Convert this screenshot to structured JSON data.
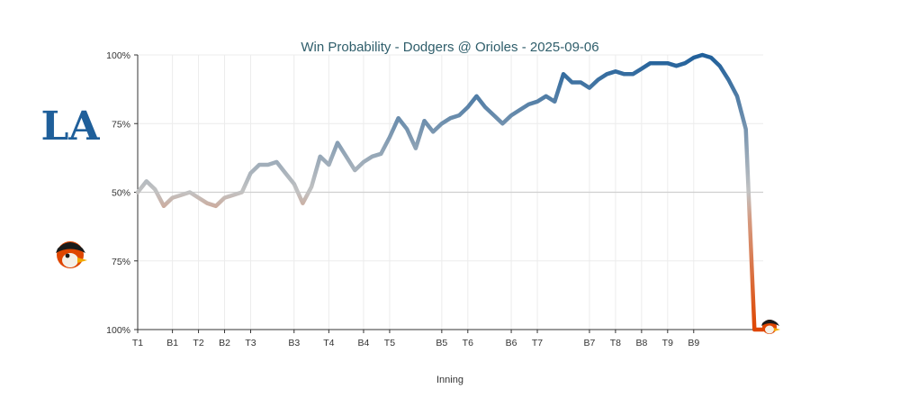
{
  "chart_data": {
    "type": "line",
    "title": "Win Probability - Dodgers @ Orioles - 2025-09-06",
    "xlabel": "Inning",
    "ylabel": "",
    "y_tick_labels": [
      "100%",
      "75%",
      "50%",
      "75%",
      "100%"
    ],
    "ylim": [
      -100,
      100
    ],
    "grid": true,
    "x_ticks": [
      {
        "label": "T1",
        "x": 0
      },
      {
        "label": "B1",
        "x": 4
      },
      {
        "label": "T2",
        "x": 7
      },
      {
        "label": "B2",
        "x": 10
      },
      {
        "label": "T3",
        "x": 13
      },
      {
        "label": "B3",
        "x": 18
      },
      {
        "label": "T4",
        "x": 22
      },
      {
        "label": "B4",
        "x": 26
      },
      {
        "label": "T5",
        "x": 29
      },
      {
        "label": "B5",
        "x": 35
      },
      {
        "label": "T6",
        "x": 38
      },
      {
        "label": "B6",
        "x": 43
      },
      {
        "label": "T7",
        "x": 46
      },
      {
        "label": "B7",
        "x": 52
      },
      {
        "label": "T8",
        "x": 55
      },
      {
        "label": "B8",
        "x": 58
      },
      {
        "label": "T9",
        "x": 61
      },
      {
        "label": "B9",
        "x": 64
      }
    ],
    "x_max": 72,
    "series": [
      {
        "name": "",
        "x": [
          0,
          1,
          2,
          3,
          4,
          5,
          6,
          7,
          8,
          9,
          10,
          11,
          12,
          13,
          14,
          15,
          16,
          17,
          18,
          19,
          20,
          21,
          22,
          23,
          24,
          25,
          26,
          27,
          28,
          29,
          30,
          31,
          32,
          33,
          34,
          35,
          36,
          37,
          38,
          39,
          40,
          41,
          42,
          43,
          44,
          45,
          46,
          47,
          48,
          49,
          50,
          51,
          52,
          53,
          54,
          55,
          56,
          57,
          58,
          59,
          60,
          61,
          62,
          63,
          64,
          65,
          66,
          67,
          68,
          69,
          70,
          71,
          72
        ],
        "values": [
          0,
          8,
          2,
          -10,
          -4,
          -2,
          0,
          -4,
          -8,
          -10,
          -4,
          -2,
          0,
          14,
          20,
          20,
          22,
          14,
          6,
          -8,
          4,
          26,
          20,
          36,
          26,
          16,
          22,
          26,
          28,
          40,
          54,
          46,
          32,
          52,
          44,
          50,
          54,
          56,
          62,
          70,
          62,
          56,
          50,
          56,
          60,
          64,
          66,
          70,
          66,
          86,
          80,
          80,
          76,
          82,
          86,
          88,
          86,
          86,
          90,
          94,
          94,
          94,
          92,
          94,
          98,
          100,
          98,
          92,
          82,
          70,
          46,
          -100,
          -100
        ]
      }
    ],
    "team_top": "LA",
    "team_bottom": "Orioles",
    "colors": {
      "dodgers": "#1f5f9a",
      "orioles": "#df4601",
      "neutral": "#bdbdbd",
      "grid": "#ececec",
      "midline": "#cfcfcf",
      "axis": "#333333",
      "title": "#2f5e6b"
    }
  }
}
